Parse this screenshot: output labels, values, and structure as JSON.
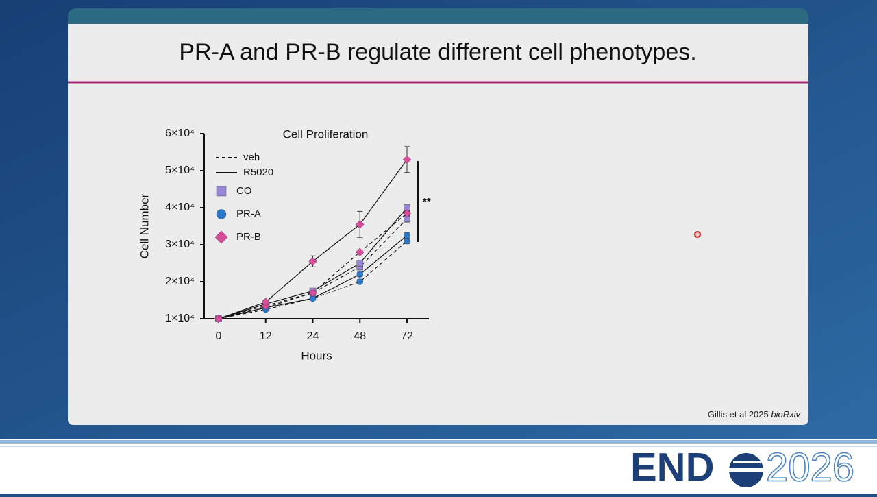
{
  "slide": {
    "title": "PR-A and PR-B regulate different cell phenotypes.",
    "citation": "Gillis et al 2025",
    "citation_journal": "bioRxiv",
    "logo": {
      "left": "END",
      "right": "2026"
    }
  },
  "chart_data": {
    "type": "line",
    "title": "Cell Proliferation",
    "x_label": "Hours",
    "y_label": "Cell Number",
    "categories": [
      "0",
      "12",
      "24",
      "48",
      "72"
    ],
    "ylim": [
      10000,
      60000
    ],
    "yticks": [
      {
        "value": 10000,
        "label": "1×10⁴"
      },
      {
        "value": 20000,
        "label": "2×10⁴"
      },
      {
        "value": 30000,
        "label": "3×10⁴"
      },
      {
        "value": 40000,
        "label": "4×10⁴"
      },
      {
        "value": 50000,
        "label": "5×10⁴"
      },
      {
        "value": 60000,
        "label": "6×10⁴"
      }
    ],
    "line_styles": [
      {
        "name": "veh",
        "dash": "5 4"
      },
      {
        "name": "R5020",
        "dash": "none"
      }
    ],
    "groups": [
      {
        "name": "CO",
        "color": "#9a86d6",
        "marker": "square",
        "series": [
          {
            "values": [
              10000,
              13000,
              17000,
              24000,
              37000
            ],
            "errors": [
              300,
              500,
              600,
              800,
              900
            ]
          },
          {
            "values": [
              10000,
              14000,
              17500,
              25000,
              40000
            ],
            "errors": [
              300,
              500,
              600,
              800,
              1000
            ]
          }
        ]
      },
      {
        "name": "PR-A",
        "color": "#2e78c8",
        "marker": "circle",
        "series": [
          {
            "values": [
              10000,
              12500,
              15500,
              20000,
              31000
            ],
            "errors": [
              300,
              400,
              500,
              600,
              700
            ]
          },
          {
            "values": [
              10000,
              13000,
              15500,
              22000,
              32500
            ],
            "errors": [
              300,
              400,
              500,
              600,
              800
            ]
          }
        ]
      },
      {
        "name": "PR-B",
        "color": "#d64f9a",
        "marker": "diamond",
        "series": [
          {
            "values": [
              10000,
              13500,
              17000,
              28000,
              38500
            ],
            "errors": [
              300,
              500,
              600,
              600,
              700
            ]
          },
          {
            "values": [
              10000,
              14500,
              25500,
              35500,
              53000
            ],
            "errors": [
              300,
              600,
              1500,
              3500,
              3500
            ]
          }
        ]
      }
    ],
    "annotation": "**"
  }
}
